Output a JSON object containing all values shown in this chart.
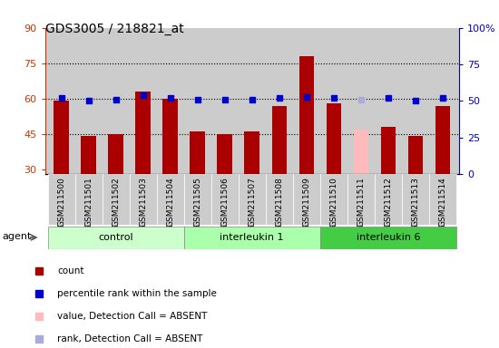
{
  "title": "GDS3005 / 218821_at",
  "samples": [
    "GSM211500",
    "GSM211501",
    "GSM211502",
    "GSM211503",
    "GSM211504",
    "GSM211505",
    "GSM211506",
    "GSM211507",
    "GSM211508",
    "GSM211509",
    "GSM211510",
    "GSM211511",
    "GSM211512",
    "GSM211513",
    "GSM211514"
  ],
  "bar_values": [
    59,
    44,
    45,
    63,
    60,
    46,
    45,
    46,
    57,
    78,
    58,
    47,
    48,
    44,
    57
  ],
  "bar_colors": [
    "#aa0000",
    "#aa0000",
    "#aa0000",
    "#aa0000",
    "#aa0000",
    "#aa0000",
    "#aa0000",
    "#aa0000",
    "#aa0000",
    "#aa0000",
    "#aa0000",
    "#ffbbbb",
    "#aa0000",
    "#aa0000",
    "#aa0000"
  ],
  "dot_percentiles": [
    52,
    50,
    51,
    54,
    52,
    51,
    51,
    51,
    52,
    53,
    52,
    51,
    52,
    50,
    52
  ],
  "dot_colors": [
    "#0000cc",
    "#0000cc",
    "#0000cc",
    "#0000cc",
    "#0000cc",
    "#0000cc",
    "#0000cc",
    "#0000cc",
    "#0000cc",
    "#0000cc",
    "#0000cc",
    "#aaaadd",
    "#0000cc",
    "#0000cc",
    "#0000cc"
  ],
  "groups": [
    {
      "label": "control",
      "start": 0,
      "end": 5,
      "color": "#ccffcc"
    },
    {
      "label": "interleukin 1",
      "start": 5,
      "end": 10,
      "color": "#aaffaa"
    },
    {
      "label": "interleukin 6",
      "start": 10,
      "end": 15,
      "color": "#44cc44"
    }
  ],
  "ylim_left": [
    28,
    90
  ],
  "ylim_right": [
    0,
    100
  ],
  "yticks_left": [
    30,
    45,
    60,
    75,
    90
  ],
  "yticks_right": [
    0,
    25,
    50,
    75,
    100
  ],
  "yticklabels_right": [
    "0",
    "25",
    "50",
    "75",
    "100%"
  ],
  "hlines": [
    45,
    60,
    75
  ],
  "left_color": "#cc3300",
  "right_color": "#0000cc",
  "plot_bg_color": "#cccccc",
  "xtick_bg_color": "#cccccc",
  "agent_label": "agent"
}
